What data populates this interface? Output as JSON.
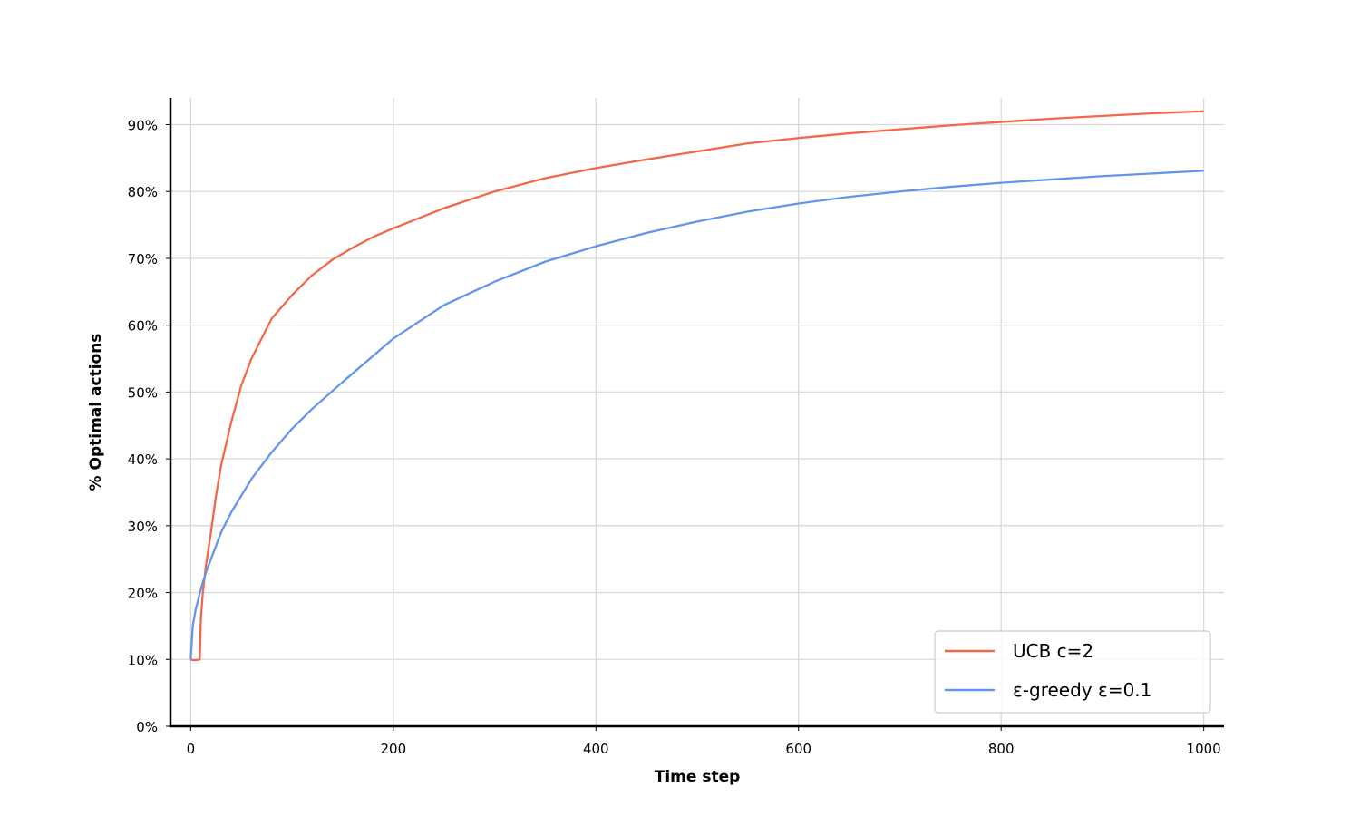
{
  "chart_data": {
    "type": "line",
    "xlabel": "Time step",
    "ylabel": "% Optimal actions",
    "xlim": [
      -20,
      1020
    ],
    "ylim": [
      0,
      0.94
    ],
    "xticks": [
      0,
      200,
      400,
      600,
      800,
      1000
    ],
    "xtick_labels": [
      "0",
      "200",
      "400",
      "600",
      "800",
      "1000"
    ],
    "yticks": [
      0,
      0.1,
      0.2,
      0.3,
      0.4,
      0.5,
      0.6,
      0.7,
      0.8,
      0.9
    ],
    "ytick_labels": [
      "0%",
      "10%",
      "20%",
      "30%",
      "40%",
      "50%",
      "60%",
      "70%",
      "80%",
      "90%"
    ],
    "grid": true,
    "legend_position": "bottom-right",
    "series": [
      {
        "name": "UCB c=2",
        "color": "#F4674A",
        "x": [
          0,
          2,
          5,
          9,
          10,
          12,
          15,
          20,
          25,
          30,
          40,
          50,
          60,
          70,
          80,
          100,
          120,
          140,
          160,
          180,
          200,
          250,
          300,
          350,
          400,
          450,
          500,
          550,
          600,
          650,
          700,
          750,
          800,
          850,
          900,
          950,
          1000
        ],
        "y": [
          0.1,
          0.099,
          0.099,
          0.1,
          0.16,
          0.2,
          0.24,
          0.29,
          0.345,
          0.39,
          0.455,
          0.51,
          0.55,
          0.58,
          0.61,
          0.645,
          0.675,
          0.698,
          0.716,
          0.732,
          0.745,
          0.775,
          0.8,
          0.82,
          0.835,
          0.848,
          0.86,
          0.872,
          0.88,
          0.887,
          0.893,
          0.899,
          0.904,
          0.909,
          0.913,
          0.917,
          0.92
        ]
      },
      {
        "name": "ε-greedy ε=0.1",
        "color": "#6495ED",
        "x": [
          0,
          2,
          5,
          10,
          15,
          20,
          30,
          40,
          50,
          60,
          80,
          100,
          120,
          150,
          200,
          250,
          300,
          350,
          400,
          450,
          500,
          550,
          600,
          650,
          700,
          750,
          800,
          850,
          900,
          950,
          1000
        ],
        "y": [
          0.1,
          0.15,
          0.175,
          0.205,
          0.23,
          0.25,
          0.29,
          0.32,
          0.345,
          0.37,
          0.41,
          0.445,
          0.475,
          0.515,
          0.58,
          0.63,
          0.665,
          0.695,
          0.718,
          0.738,
          0.755,
          0.77,
          0.782,
          0.792,
          0.8,
          0.807,
          0.813,
          0.818,
          0.823,
          0.827,
          0.831
        ]
      }
    ]
  }
}
